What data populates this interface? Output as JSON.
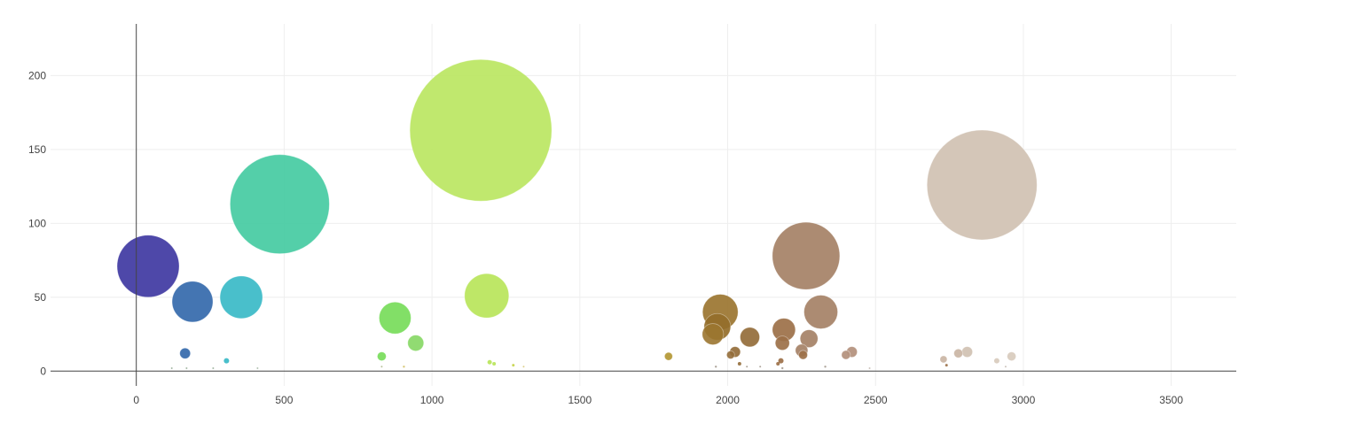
{
  "chart_data": {
    "type": "scatter",
    "subtype": "bubble",
    "title": "",
    "xlabel": "",
    "ylabel": "",
    "xlim": [
      -290,
      3720
    ],
    "ylim": [
      -10,
      235
    ],
    "x_ticks": [
      0,
      500,
      1000,
      1500,
      2000,
      2500,
      3000,
      3500
    ],
    "y_ticks": [
      0,
      50,
      100,
      150,
      200
    ],
    "grid": true,
    "legend": "none",
    "points": [
      {
        "x": 40,
        "y": 71,
        "size": 35,
        "color": "#3b34a0",
        "opacity": 0.9
      },
      {
        "x": 190,
        "y": 47,
        "size": 23,
        "color": "#3a6eae",
        "opacity": 0.95
      },
      {
        "x": 165,
        "y": 12,
        "size": 6,
        "color": "#3a6eae",
        "opacity": 0.95
      },
      {
        "x": 355,
        "y": 50,
        "size": 24,
        "color": "#3fbcc8",
        "opacity": 0.95
      },
      {
        "x": 305,
        "y": 7,
        "size": 3,
        "color": "#3fbcc8",
        "opacity": 0.95
      },
      {
        "x": 485,
        "y": 113,
        "size": 56,
        "color": "#45cba2",
        "opacity": 0.92
      },
      {
        "x": 875,
        "y": 36,
        "size": 18,
        "color": "#7bdd5f",
        "opacity": 0.95
      },
      {
        "x": 945,
        "y": 19,
        "size": 9,
        "color": "#8bd96a",
        "opacity": 0.95
      },
      {
        "x": 830,
        "y": 10,
        "size": 5,
        "color": "#7bdd5f",
        "opacity": 0.95
      },
      {
        "x": 1165,
        "y": 163,
        "size": 80,
        "color": "#b9e65e",
        "opacity": 0.9
      },
      {
        "x": 1185,
        "y": 51,
        "size": 25,
        "color": "#bae65f",
        "opacity": 0.95
      },
      {
        "x": 1195,
        "y": 6,
        "size": 2.5,
        "color": "#bae65f",
        "opacity": 0.95
      },
      {
        "x": 1210,
        "y": 5,
        "size": 2,
        "color": "#bae65f",
        "opacity": 0.95
      },
      {
        "x": 1275,
        "y": 4,
        "size": 1.5,
        "color": "#c8d550",
        "opacity": 0.95
      },
      {
        "x": 1800,
        "y": 10,
        "size": 4.5,
        "color": "#b59a3a",
        "opacity": 0.95
      },
      {
        "x": 1975,
        "y": 40,
        "size": 20,
        "color": "#9b7530",
        "opacity": 0.92
      },
      {
        "x": 1965,
        "y": 30,
        "size": 15,
        "color": "#946e2a",
        "opacity": 0.92
      },
      {
        "x": 1950,
        "y": 25,
        "size": 12,
        "color": "#9b7530",
        "opacity": 0.9
      },
      {
        "x": 2075,
        "y": 23,
        "size": 11,
        "color": "#946d3a",
        "opacity": 0.92
      },
      {
        "x": 2025,
        "y": 13,
        "size": 6,
        "color": "#946d3a",
        "opacity": 0.92
      },
      {
        "x": 2010,
        "y": 11,
        "size": 4.5,
        "color": "#946d3a",
        "opacity": 0.9
      },
      {
        "x": 2040,
        "y": 5,
        "size": 2,
        "color": "#946d3a",
        "opacity": 0.9
      },
      {
        "x": 2190,
        "y": 28,
        "size": 13,
        "color": "#9c7048",
        "opacity": 0.92
      },
      {
        "x": 2185,
        "y": 19,
        "size": 8,
        "color": "#9c7048",
        "opacity": 0.92
      },
      {
        "x": 2265,
        "y": 78,
        "size": 38,
        "color": "#a8856a",
        "opacity": 0.95
      },
      {
        "x": 2315,
        "y": 40,
        "size": 19,
        "color": "#a8856a",
        "opacity": 0.95
      },
      {
        "x": 2275,
        "y": 22,
        "size": 10,
        "color": "#a8856a",
        "opacity": 0.95
      },
      {
        "x": 2250,
        "y": 14,
        "size": 7,
        "color": "#a8856a",
        "opacity": 0.95
      },
      {
        "x": 2255,
        "y": 11,
        "size": 5,
        "color": "#9c7048",
        "opacity": 0.92
      },
      {
        "x": 2180,
        "y": 7,
        "size": 3,
        "color": "#9c7048",
        "opacity": 0.92
      },
      {
        "x": 2170,
        "y": 5,
        "size": 2,
        "color": "#9c7048",
        "opacity": 0.92
      },
      {
        "x": 2400,
        "y": 11,
        "size": 5,
        "color": "#b5937f",
        "opacity": 0.95
      },
      {
        "x": 2420,
        "y": 13,
        "size": 6,
        "color": "#b5937f",
        "opacity": 0.95
      },
      {
        "x": 2860,
        "y": 126,
        "size": 62,
        "color": "#d2c3b4",
        "opacity": 0.95
      },
      {
        "x": 2730,
        "y": 8,
        "size": 4,
        "color": "#cbb7a6",
        "opacity": 0.95
      },
      {
        "x": 2780,
        "y": 12,
        "size": 5,
        "color": "#cbb7a6",
        "opacity": 0.95
      },
      {
        "x": 2810,
        "y": 13,
        "size": 6,
        "color": "#d2c3b4",
        "opacity": 0.95
      },
      {
        "x": 2910,
        "y": 7,
        "size": 3,
        "color": "#d9ccbf",
        "opacity": 0.95
      },
      {
        "x": 2960,
        "y": 10,
        "size": 5,
        "color": "#d9ccbf",
        "opacity": 0.95
      },
      {
        "x": 2740,
        "y": 4,
        "size": 1.5,
        "color": "#9c7048",
        "opacity": 0.9
      },
      {
        "x": 120,
        "y": 2,
        "size": 1,
        "color": "#6a8a6a",
        "opacity": 0.6
      },
      {
        "x": 170,
        "y": 2,
        "size": 1,
        "color": "#6a8a6a",
        "opacity": 0.6
      },
      {
        "x": 260,
        "y": 2,
        "size": 1,
        "color": "#6a8a6a",
        "opacity": 0.6
      },
      {
        "x": 410,
        "y": 2,
        "size": 1,
        "color": "#6a8a6a",
        "opacity": 0.5
      },
      {
        "x": 830,
        "y": 3,
        "size": 1,
        "color": "#8a9a5a",
        "opacity": 0.6
      },
      {
        "x": 905,
        "y": 3,
        "size": 1.2,
        "color": "#c8b040",
        "opacity": 0.7
      },
      {
        "x": 1310,
        "y": 3,
        "size": 1,
        "color": "#c8b040",
        "opacity": 0.6
      },
      {
        "x": 1960,
        "y": 3,
        "size": 1.2,
        "color": "#7a6a5a",
        "opacity": 0.6
      },
      {
        "x": 2065,
        "y": 3,
        "size": 1,
        "color": "#7a6a5a",
        "opacity": 0.6
      },
      {
        "x": 2110,
        "y": 3,
        "size": 1,
        "color": "#7a6a5a",
        "opacity": 0.6
      },
      {
        "x": 2185,
        "y": 2,
        "size": 1.2,
        "color": "#7a6a5a",
        "opacity": 0.6
      },
      {
        "x": 2330,
        "y": 3,
        "size": 1.2,
        "color": "#7a6a5a",
        "opacity": 0.6
      },
      {
        "x": 2480,
        "y": 2,
        "size": 1,
        "color": "#9a8a7a",
        "opacity": 0.5
      },
      {
        "x": 2940,
        "y": 3,
        "size": 1,
        "color": "#9a8a7a",
        "opacity": 0.5
      }
    ]
  }
}
